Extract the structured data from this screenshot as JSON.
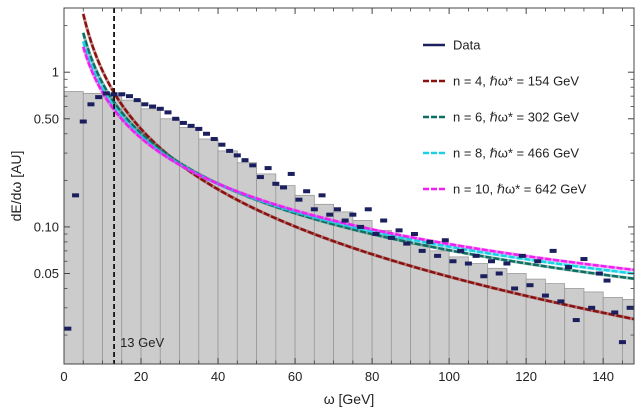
{
  "chart_data": {
    "type": "bar",
    "title": "",
    "xlabel": "ω [GeV]",
    "ylabel": "dE/dω [AU]",
    "xlim": [
      0,
      148
    ],
    "ylim": [
      0.013,
      2.6
    ],
    "yscale": "log",
    "xticks": [
      0,
      20,
      40,
      60,
      80,
      100,
      120,
      140
    ],
    "xtick_labels": [
      "0",
      "20",
      "40",
      "60",
      "80",
      "100",
      "120",
      "140"
    ],
    "yticks": [
      0.05,
      0.1,
      0.5,
      1
    ],
    "ytick_labels": [
      "0.05",
      "0.10",
      "0.50",
      "1"
    ],
    "histogram": {
      "name": "Data",
      "bin_width": 5,
      "bins": [
        {
          "x0": 0,
          "x1": 5,
          "value": 0.75
        },
        {
          "x0": 5,
          "x1": 10,
          "value": 0.73
        },
        {
          "x0": 10,
          "x1": 15,
          "value": 0.7
        },
        {
          "x0": 15,
          "x1": 20,
          "value": 0.66
        },
        {
          "x0": 20,
          "x1": 25,
          "value": 0.58
        },
        {
          "x0": 25,
          "x1": 30,
          "value": 0.5
        },
        {
          "x0": 30,
          "x1": 35,
          "value": 0.44
        },
        {
          "x0": 35,
          "x1": 40,
          "value": 0.37
        },
        {
          "x0": 40,
          "x1": 45,
          "value": 0.31
        },
        {
          "x0": 45,
          "x1": 50,
          "value": 0.26
        },
        {
          "x0": 50,
          "x1": 55,
          "value": 0.22
        },
        {
          "x0": 55,
          "x1": 60,
          "value": 0.185
        },
        {
          "x0": 60,
          "x1": 65,
          "value": 0.16
        },
        {
          "x0": 65,
          "x1": 70,
          "value": 0.14
        },
        {
          "x0": 70,
          "x1": 75,
          "value": 0.125
        },
        {
          "x0": 75,
          "x1": 80,
          "value": 0.11
        },
        {
          "x0": 80,
          "x1": 85,
          "value": 0.095
        },
        {
          "x0": 85,
          "x1": 90,
          "value": 0.085
        },
        {
          "x0": 90,
          "x1": 95,
          "value": 0.077
        },
        {
          "x0": 95,
          "x1": 100,
          "value": 0.07
        },
        {
          "x0": 100,
          "x1": 105,
          "value": 0.064
        },
        {
          "x0": 105,
          "x1": 110,
          "value": 0.058
        },
        {
          "x0": 110,
          "x1": 115,
          "value": 0.054
        },
        {
          "x0": 115,
          "x1": 120,
          "value": 0.05
        },
        {
          "x0": 120,
          "x1": 125,
          "value": 0.046
        },
        {
          "x0": 125,
          "x1": 130,
          "value": 0.043
        },
        {
          "x0": 130,
          "x1": 135,
          "value": 0.04
        },
        {
          "x0": 135,
          "x1": 140,
          "value": 0.038
        },
        {
          "x0": 140,
          "x1": 145,
          "value": 0.035
        },
        {
          "x0": 145,
          "x1": 148,
          "value": 0.034
        }
      ]
    },
    "data_points": {
      "name": "Data",
      "color": "#1b1f5e",
      "x": [
        1,
        3,
        5,
        7,
        9,
        11,
        13,
        15,
        17,
        19,
        21,
        23,
        25,
        27,
        29,
        31,
        33,
        35,
        37,
        39,
        41,
        43,
        45,
        47,
        49,
        51,
        53,
        55,
        57,
        59,
        61,
        63,
        65,
        67,
        69,
        71,
        73,
        75,
        77,
        79,
        81,
        83,
        85,
        87,
        89,
        91,
        93,
        95,
        97,
        99,
        101,
        103,
        105,
        107,
        109,
        111,
        113,
        115,
        117,
        119,
        121,
        123,
        125,
        127,
        129,
        131,
        133,
        135,
        137,
        139,
        141,
        143,
        145,
        147
      ],
      "y": [
        0.022,
        0.16,
        0.48,
        0.62,
        0.69,
        0.73,
        0.72,
        0.72,
        0.7,
        0.66,
        0.62,
        0.6,
        0.58,
        0.55,
        0.5,
        0.47,
        0.45,
        0.43,
        0.4,
        0.37,
        0.34,
        0.31,
        0.29,
        0.27,
        0.25,
        0.21,
        0.24,
        0.19,
        0.18,
        0.22,
        0.15,
        0.17,
        0.13,
        0.16,
        0.12,
        0.13,
        0.11,
        0.12,
        0.1,
        0.13,
        0.09,
        0.11,
        0.085,
        0.095,
        0.078,
        0.09,
        0.07,
        0.08,
        0.065,
        0.082,
        0.06,
        0.07,
        0.058,
        0.065,
        0.048,
        0.06,
        0.05,
        0.058,
        0.04,
        0.065,
        0.042,
        0.06,
        0.036,
        0.07,
        0.033,
        0.055,
        0.025,
        0.062,
        0.03,
        0.05,
        0.045,
        0.028,
        0.018,
        0.03
      ]
    },
    "series": [
      {
        "name": "n = 4, ℏω* = 154 GeV",
        "color": "#8b1010",
        "n": 4,
        "omega_star": 154
      },
      {
        "name": "n = 6, ℏω* = 302 GeV",
        "color": "#0f6e62",
        "n": 6,
        "omega_star": 302
      },
      {
        "name": "n = 8, ℏω* = 466 GeV",
        "color": "#1ad2e6",
        "n": 8,
        "omega_star": 466
      },
      {
        "name": "n = 10, ℏω* = 642 GeV",
        "color": "#f01ef0",
        "n": 10,
        "omega_star": 642
      }
    ],
    "reference_line": {
      "x": 13,
      "label": "13 GeV"
    },
    "legend_position": "top-right",
    "grid": false
  }
}
